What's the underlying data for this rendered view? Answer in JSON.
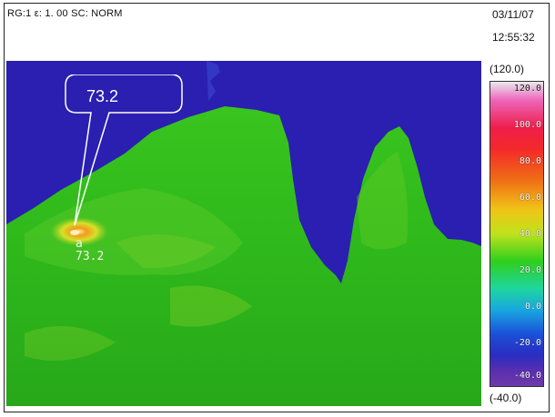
{
  "header": {
    "status": "RG:1 ε: 1. 00 SC: NORM",
    "date": "03/11/07",
    "time": "12:55:32"
  },
  "range": {
    "max": "(120.0)",
    "min": "(-40.0)"
  },
  "scale": {
    "ticks": [
      "120.0",
      "100.0",
      "80.0",
      "60.0",
      "40.0",
      "20.0",
      "0.0",
      "-20.0",
      "-40.0"
    ]
  },
  "marker": {
    "letter": "a",
    "value": "73.2"
  },
  "callout": {
    "value": "73.2"
  },
  "colors": {
    "background_blue": "#2a1fb0",
    "rock_green": "#2ebf1e",
    "hotspot": "#f0a020"
  }
}
